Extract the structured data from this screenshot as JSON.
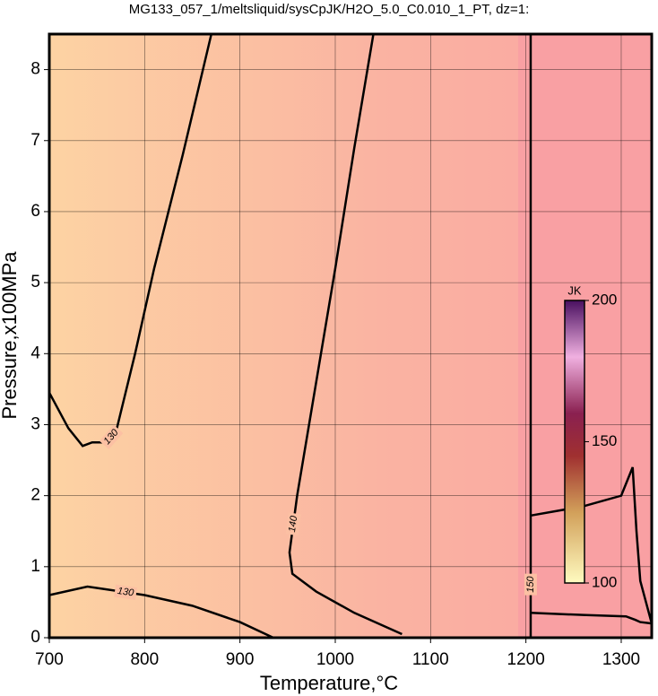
{
  "chart_data": {
    "type": "contour",
    "title": "MG133_057_1/meltsliquid/sysCpJK/H2O_5.0_C0.010_1_PT, dz=1:",
    "x_label": "Temperature,°C",
    "y_label": "Pressure,x100MPa",
    "xlim": [
      700,
      1332
    ],
    "ylim": [
      0,
      8.5
    ],
    "xticks": [
      700,
      800,
      900,
      1000,
      1100,
      1200,
      1300
    ],
    "yticks": [
      0,
      1,
      2,
      3,
      4,
      5,
      6,
      7,
      8
    ],
    "grid": true,
    "line_color": "#000000",
    "contours": [
      {
        "level": 130,
        "labeled": true,
        "x": [
          700,
          720,
          735,
          745,
          760,
          770,
          790,
          810,
          840,
          870
        ],
        "y": [
          3.45,
          2.95,
          2.7,
          2.75,
          2.75,
          2.9,
          4.0,
          5.2,
          6.8,
          8.5
        ]
      },
      {
        "level": 130,
        "labeled": true,
        "x": [
          700,
          740,
          760,
          800,
          850,
          900,
          935
        ],
        "y": [
          0.6,
          0.72,
          0.68,
          0.6,
          0.45,
          0.22,
          0
        ]
      },
      {
        "level": 140,
        "labeled": true,
        "x": [
          1040,
          1020,
          1000,
          975,
          960,
          952,
          955,
          980,
          1020,
          1070
        ],
        "y": [
          8.5,
          6.9,
          5.2,
          3.2,
          2.0,
          1.2,
          0.9,
          0.65,
          0.35,
          0.05
        ]
      },
      {
        "level": 150,
        "labeled": true,
        "x": [
          1205,
          1205,
          1205
        ],
        "y": [
          0,
          1.5,
          8.5
        ]
      },
      {
        "level": 150,
        "labeled": false,
        "x": [
          1205,
          1260,
          1305,
          1315,
          1320,
          1332
        ],
        "y": [
          0.35,
          0.32,
          0.3,
          0.25,
          0.22,
          0.2
        ]
      },
      {
        "level": 150,
        "labeled": false,
        "x": [
          1205,
          1260,
          1300,
          1312,
          1316,
          1320,
          1332
        ],
        "y": [
          1.72,
          1.85,
          2.0,
          2.4,
          1.5,
          0.8,
          0.2
        ]
      }
    ],
    "colorbar": {
      "label": "JK",
      "lim": [
        100,
        200
      ],
      "ticks": [
        100,
        150,
        200
      ]
    }
  }
}
